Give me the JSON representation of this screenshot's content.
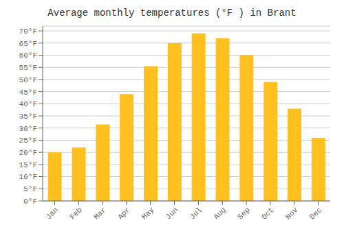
{
  "chart_data": {
    "type": "bar",
    "title": "Average monthly temperatures (°F ) in Brant",
    "categories": [
      "Jan",
      "Feb",
      "Mar",
      "Apr",
      "May",
      "Jun",
      "Jul",
      "Aug",
      "Sep",
      "Oct",
      "Nov",
      "Dec"
    ],
    "values": [
      20.0,
      22.0,
      31.5,
      44.0,
      55.5,
      65.0,
      69.0,
      67.0,
      60.0,
      49.0,
      38.0,
      26.0
    ],
    "color": "#FFC020",
    "ylim": [
      0,
      72
    ],
    "yticks": [
      {
        "value": 0,
        "label": "0°F"
      },
      {
        "value": 5,
        "label": "5°F"
      },
      {
        "value": 10,
        "label": "10°F"
      },
      {
        "value": 15,
        "label": "15°F"
      },
      {
        "value": 20,
        "label": "20°F"
      },
      {
        "value": 25,
        "label": "25°F"
      },
      {
        "value": 30,
        "label": "30°F"
      },
      {
        "value": 35,
        "label": "35°F"
      },
      {
        "value": 40,
        "label": "40°F"
      },
      {
        "value": 45,
        "label": "45°F"
      },
      {
        "value": 50,
        "label": "50°F"
      },
      {
        "value": 55,
        "label": "55°F"
      },
      {
        "value": 60,
        "label": "60°F"
      },
      {
        "value": 65,
        "label": "65°F"
      },
      {
        "value": 70,
        "label": "70°F"
      }
    ],
    "grid": true
  }
}
